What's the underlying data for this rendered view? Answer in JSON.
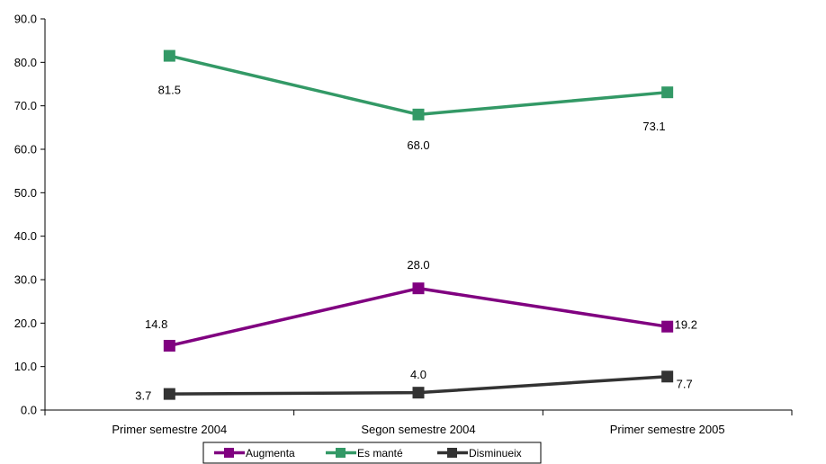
{
  "chart_data": {
    "type": "line",
    "categories": [
      "Primer semestre 2004",
      "Segon semestre 2004",
      "Primer semestre 2005"
    ],
    "series": [
      {
        "name": "Augmenta",
        "values": [
          14.8,
          28.0,
          19.2
        ],
        "labels": [
          "14.8",
          "28.0",
          "19.2"
        ],
        "color": "#800080"
      },
      {
        "name": "Es manté",
        "values": [
          81.5,
          68.0,
          73.1
        ],
        "labels": [
          "81.5",
          "68.0",
          "73.1"
        ],
        "color": "#339966"
      },
      {
        "name": "Disminueix",
        "values": [
          3.7,
          4.0,
          7.7
        ],
        "labels": [
          "3.7",
          "4.0",
          "7.7"
        ],
        "color": "#333333"
      }
    ],
    "yticks": [
      "0.0",
      "10.0",
      "20.0",
      "30.0",
      "40.0",
      "50.0",
      "60.0",
      "70.0",
      "80.0",
      "90.0"
    ],
    "ylim": [
      0,
      90
    ],
    "grid": false,
    "legend_position": "bottom",
    "title": "",
    "xlabel": "",
    "ylabel": ""
  }
}
